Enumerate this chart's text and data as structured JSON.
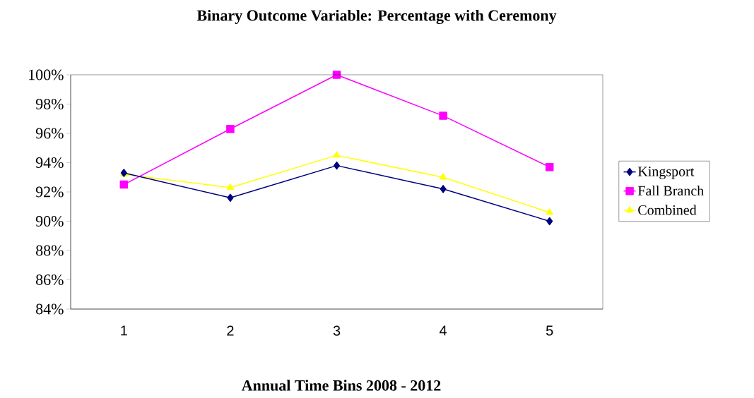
{
  "chart_data": {
    "type": "line",
    "title": "Binary Outcome Variable: Percentage with Ceremony",
    "xlabel": "Annual Time Bins 2008 - 2012",
    "categories": [
      "1",
      "2",
      "3",
      "4",
      "5"
    ],
    "series": [
      {
        "name": "Kingsport",
        "color": "#000080",
        "marker": "diamond",
        "values": [
          93.3,
          91.6,
          93.8,
          92.2,
          90.0
        ]
      },
      {
        "name": "Fall Branch",
        "color": "#ff00ff",
        "marker": "square",
        "values": [
          92.5,
          96.3,
          100,
          97.2,
          93.7
        ]
      },
      {
        "name": "Combined",
        "color": "#ffff00",
        "marker": "triangle",
        "values": [
          93.2,
          92.3,
          94.5,
          93.0,
          90.6
        ]
      }
    ],
    "ylim": [
      84,
      100
    ],
    "yticks": [
      {
        "value": 84,
        "label": "84%"
      },
      {
        "value": 86,
        "label": "86%"
      },
      {
        "value": 88,
        "label": "88%"
      },
      {
        "value": 90,
        "label": "90%"
      },
      {
        "value": 92,
        "label": "92%"
      },
      {
        "value": 94,
        "label": "94%"
      },
      {
        "value": 96,
        "label": "96%"
      },
      {
        "value": 98,
        "label": "98%"
      },
      {
        "value": 100,
        "label": "100%"
      }
    ],
    "legend": "right",
    "line_style": "solid"
  }
}
